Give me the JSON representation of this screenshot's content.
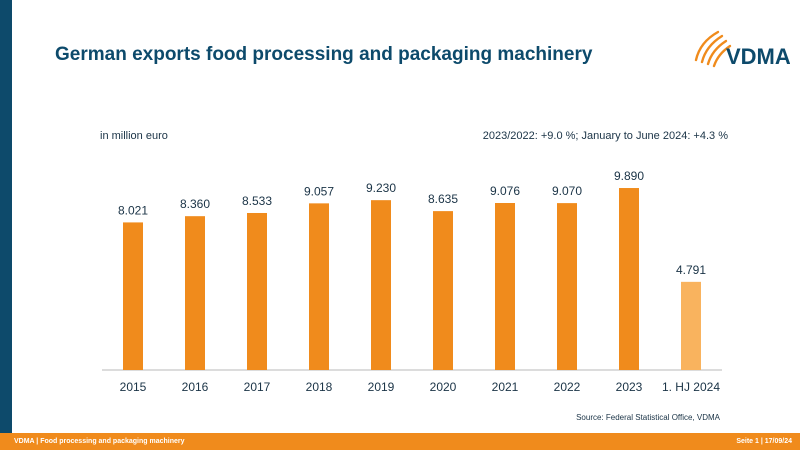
{
  "title": "German exports food processing and packaging machinery",
  "logo_text": "VDMA",
  "unit_label": "in million euro",
  "growth_note": "2023/2022: +9.0 %; January to June 2024: +4.3 %",
  "source": "Source: Federal Statistical Office, VDMA",
  "footer": {
    "left": "VDMA | Food processing and packaging machinery",
    "right": "Seite 1 | 17/09/24"
  },
  "colors": {
    "accent": "#f08b1c",
    "highlight": "#f9b35e",
    "brand_blue": "#0d4a6b"
  },
  "chart_data": {
    "type": "bar",
    "categories": [
      "2015",
      "2016",
      "2017",
      "2018",
      "2019",
      "2020",
      "2021",
      "2022",
      "2023",
      "1. HJ 2024"
    ],
    "values": [
      8021,
      8360,
      8533,
      9057,
      9230,
      8635,
      9076,
      9070,
      9890,
      4791
    ],
    "labels": [
      "8.021",
      "8.360",
      "8.533",
      "9.057",
      "9.230",
      "8.635",
      "9.076",
      "9.070",
      "9.890",
      "4.791"
    ],
    "highlight_index": 9,
    "ylim": [
      0,
      10000
    ],
    "grid": false,
    "legend": "none"
  }
}
